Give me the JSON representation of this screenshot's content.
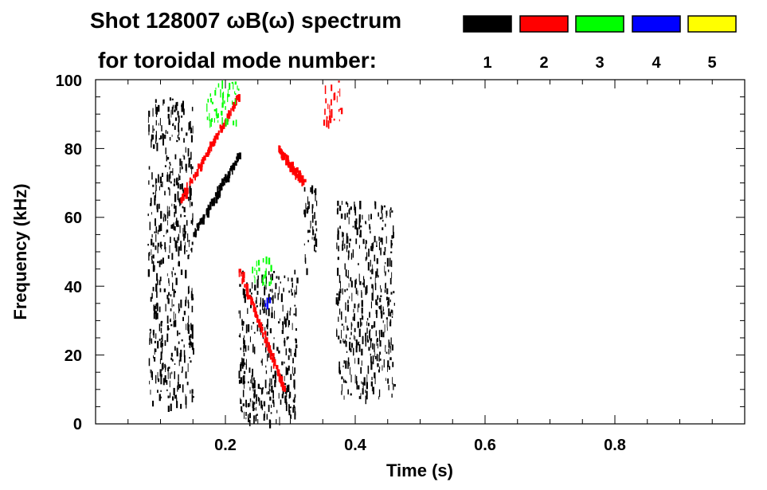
{
  "chart_data": {
    "type": "spectrogram",
    "title_line1": "Shot 128007 ωB(ω) spectrum",
    "title_line2": "for toroidal mode number:",
    "xlabel": "Time (s)",
    "ylabel": "Frequency (kHz)",
    "xlim": [
      0.0,
      1.0
    ],
    "ylim": [
      0,
      100
    ],
    "x_ticks": [
      0.2,
      0.4,
      0.6,
      0.8
    ],
    "x_tick_labels": [
      "0.2",
      "0.4",
      "0.6",
      "0.8"
    ],
    "y_ticks": [
      0,
      20,
      40,
      60,
      80,
      100
    ],
    "y_tick_labels": [
      "0",
      "20",
      "40",
      "60",
      "80",
      "100"
    ],
    "legend": [
      {
        "label": "1",
        "color": "#000000"
      },
      {
        "label": "2",
        "color": "#ff0000"
      },
      {
        "label": "3",
        "color": "#00ff00"
      },
      {
        "label": "4",
        "color": "#0000ff"
      },
      {
        "label": "5",
        "color": "#ffff00"
      }
    ],
    "features": [
      {
        "mode": "1",
        "kind": "patch",
        "t": [
          0.08,
          0.15
        ],
        "f": [
          5,
          95
        ]
      },
      {
        "mode": "1",
        "kind": "chirp",
        "t": [
          0.15,
          0.22
        ],
        "f": [
          55,
          78
        ]
      },
      {
        "mode": "1",
        "kind": "patch",
        "t": [
          0.22,
          0.31
        ],
        "f": [
          1,
          45
        ]
      },
      {
        "mode": "1",
        "kind": "patch",
        "t": [
          0.32,
          0.34
        ],
        "f": [
          45,
          70
        ]
      },
      {
        "mode": "1",
        "kind": "patch",
        "t": [
          0.37,
          0.46
        ],
        "f": [
          8,
          65
        ]
      },
      {
        "mode": "2",
        "kind": "chirp",
        "t": [
          0.13,
          0.22
        ],
        "f": [
          65,
          95
        ]
      },
      {
        "mode": "2",
        "kind": "chirp",
        "t": [
          0.22,
          0.29
        ],
        "f": [
          45,
          10
        ]
      },
      {
        "mode": "2",
        "kind": "chirp",
        "t": [
          0.28,
          0.32
        ],
        "f": [
          80,
          70
        ]
      },
      {
        "mode": "2",
        "kind": "patch",
        "t": [
          0.35,
          0.38
        ],
        "f": [
          88,
          100
        ]
      },
      {
        "mode": "3",
        "kind": "patch",
        "t": [
          0.17,
          0.22
        ],
        "f": [
          88,
          100
        ]
      },
      {
        "mode": "3",
        "kind": "patch",
        "t": [
          0.24,
          0.27
        ],
        "f": [
          40,
          50
        ]
      },
      {
        "mode": "4",
        "kind": "patch",
        "t": [
          0.26,
          0.27
        ],
        "f": [
          35,
          37
        ]
      }
    ]
  }
}
